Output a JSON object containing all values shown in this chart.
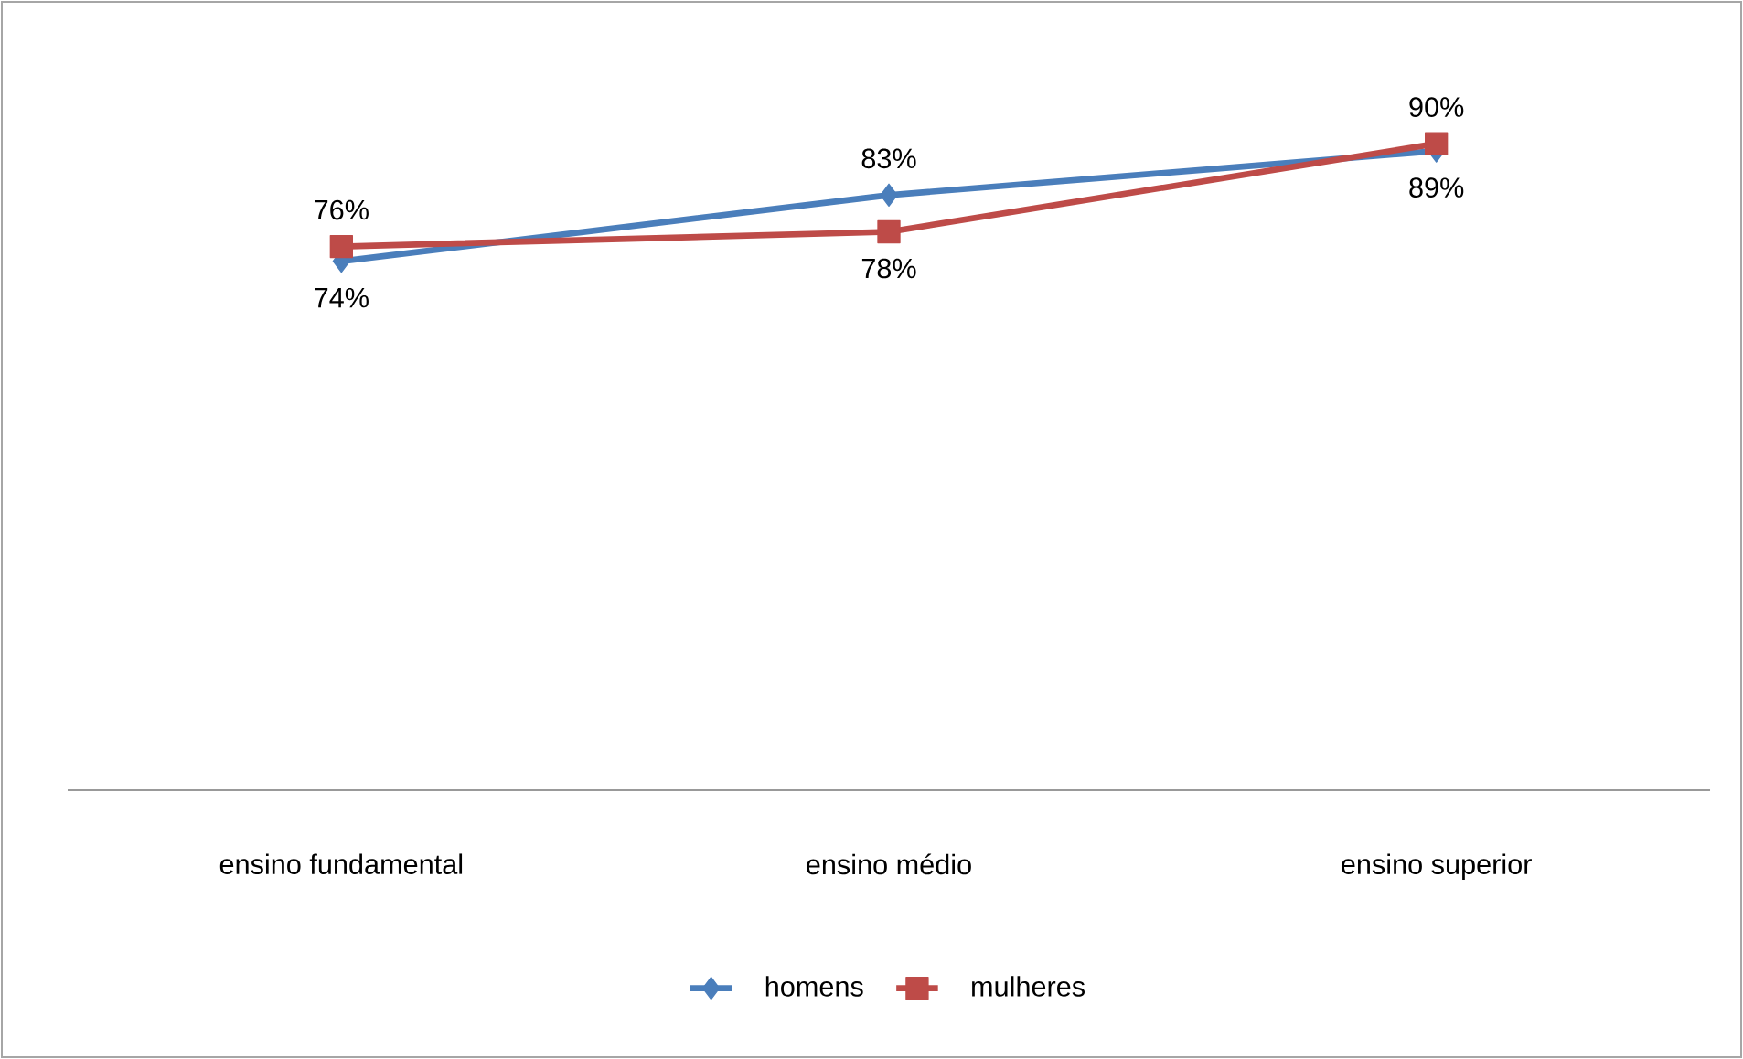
{
  "chart_data": {
    "type": "line",
    "categories": [
      "ensino fundamental",
      "ensino médio",
      "ensino superior"
    ],
    "series": [
      {
        "name": "homens",
        "color": "#4a7ebb",
        "marker": "diamond",
        "values": [
          74,
          83,
          89
        ],
        "value_labels": [
          "74%",
          "83%",
          "89%"
        ]
      },
      {
        "name": "mulheres",
        "color": "#be4b48",
        "marker": "square",
        "values": [
          76,
          78,
          90
        ],
        "value_labels": [
          "76%",
          "78%",
          "90%"
        ]
      }
    ],
    "legend": "bottom",
    "line_style": "solid"
  }
}
